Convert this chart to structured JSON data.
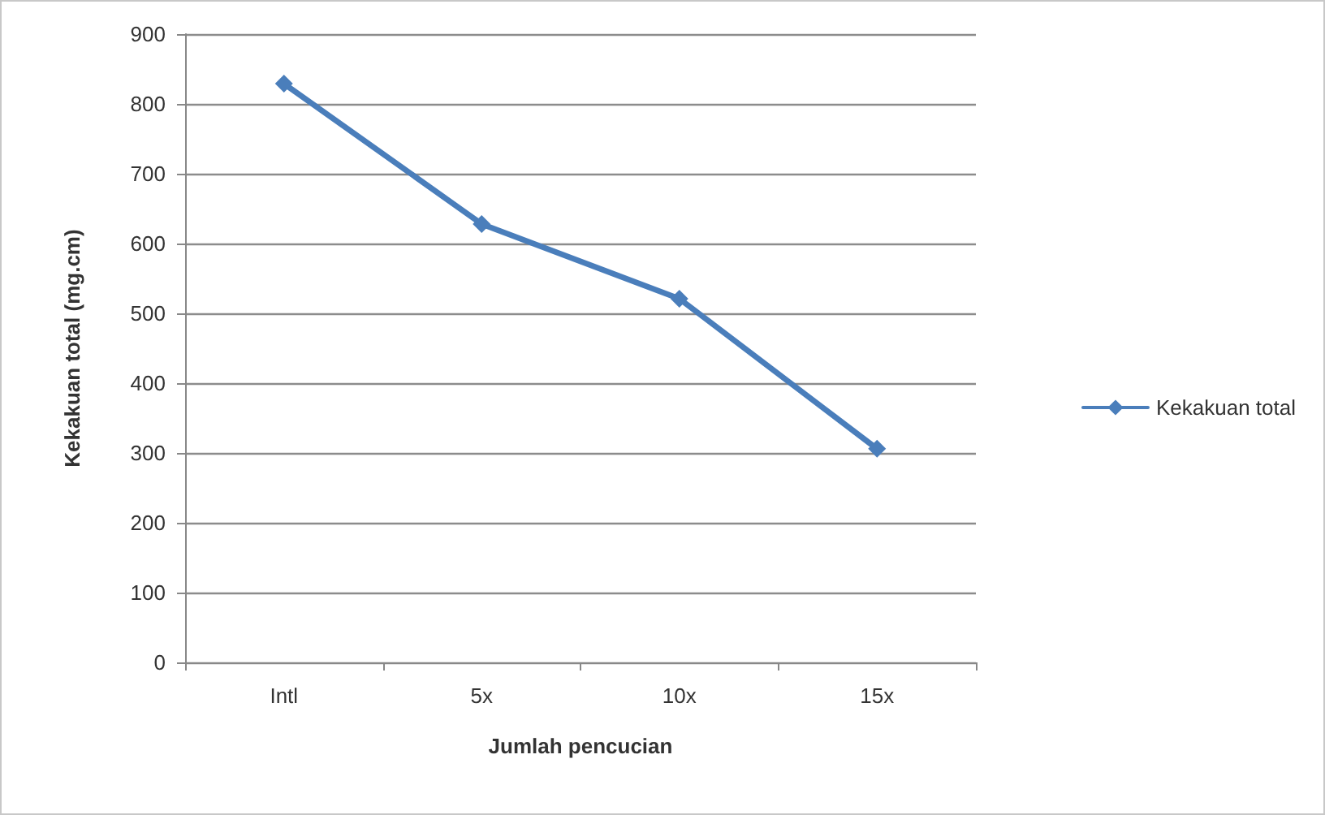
{
  "chart_data": {
    "type": "line",
    "xlabel": "Jumlah pencucian",
    "ylabel": "Kekakuan total (mg.cm)",
    "categories": [
      "Intl",
      "5x",
      "10x",
      "15x"
    ],
    "series": [
      {
        "name": "Kekakuan total",
        "color": "#4a7ebb",
        "values": [
          829,
          628,
          521,
          306
        ]
      }
    ],
    "ylim": [
      0,
      900
    ],
    "yticks": [
      0,
      100,
      200,
      300,
      400,
      500,
      600,
      700,
      800,
      900
    ],
    "grid": "y",
    "legend": "right",
    "marker": "diamond",
    "line_style": "solid"
  }
}
